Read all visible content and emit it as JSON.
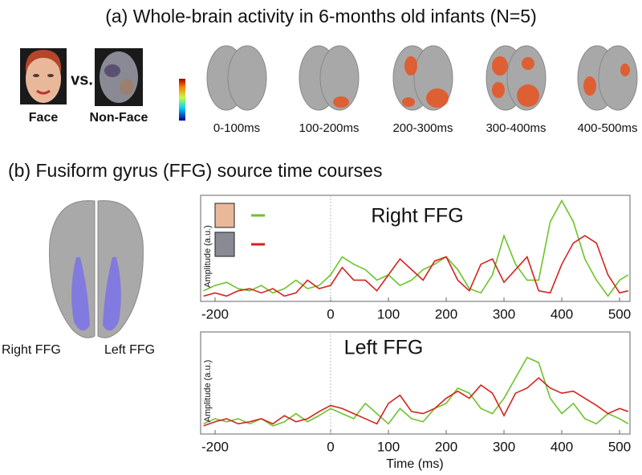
{
  "panel_a": {
    "title": "(a) Whole-brain activity in 6-months old infants (N=5)",
    "face_label": "Face",
    "vs_label": "vs.",
    "nonface_label": "Non-Face",
    "time_windows": [
      "0-100ms",
      "100-200ms",
      "200-300ms",
      "300-400ms",
      "400-500ms"
    ]
  },
  "panel_b": {
    "title": "(b) Fusiform gyrus (FFG) source time courses",
    "right_label": "Right FFG",
    "left_label": "Left FFG"
  },
  "chart_data": [
    {
      "type": "line",
      "title": "Right FFG",
      "y_label": "Amplitude (a.u.)",
      "x": [
        -220,
        -200,
        -180,
        -160,
        -140,
        -120,
        -100,
        -80,
        -60,
        -40,
        -20,
        0,
        20,
        40,
        60,
        80,
        100,
        120,
        140,
        160,
        180,
        200,
        220,
        240,
        260,
        280,
        300,
        320,
        340,
        360,
        380,
        400,
        420,
        440,
        460,
        480,
        500,
        515
      ],
      "series": [
        {
          "color": "#6cc32a",
          "values": [
            10,
            15,
            18,
            12,
            10,
            15,
            8,
            12,
            20,
            12,
            15,
            25,
            42,
            35,
            30,
            20,
            25,
            15,
            20,
            30,
            35,
            42,
            30,
            12,
            8,
            25,
            62,
            35,
            20,
            20,
            75,
            95,
            75,
            40,
            20,
            5,
            20,
            25
          ]
        },
        {
          "color": "#d4231f",
          "values": [
            5,
            8,
            5,
            10,
            12,
            8,
            12,
            5,
            8,
            20,
            12,
            15,
            32,
            20,
            20,
            10,
            25,
            40,
            30,
            20,
            38,
            42,
            20,
            10,
            35,
            40,
            18,
            30,
            42,
            10,
            8,
            35,
            55,
            62,
            55,
            25,
            8,
            10
          ]
        }
      ],
      "xlim": [
        -225,
        518
      ],
      "ylim": [
        0,
        100
      ],
      "xticks": [
        -200,
        0,
        100,
        200,
        300,
        400,
        500
      ]
    },
    {
      "type": "line",
      "title": "Left FFG",
      "y_label": "Amplitude (a.u.)",
      "x_label": "Time (ms)",
      "x": [
        -220,
        -200,
        -180,
        -160,
        -140,
        -120,
        -100,
        -80,
        -60,
        -40,
        -20,
        0,
        20,
        40,
        60,
        80,
        100,
        120,
        140,
        160,
        180,
        200,
        220,
        240,
        260,
        280,
        300,
        320,
        340,
        360,
        380,
        400,
        420,
        440,
        460,
        480,
        500,
        515
      ],
      "series": [
        {
          "color": "#6cc32a",
          "values": [
            10,
            15,
            12,
            15,
            10,
            15,
            8,
            12,
            20,
            12,
            18,
            25,
            20,
            15,
            30,
            20,
            10,
            25,
            15,
            12,
            25,
            30,
            45,
            40,
            25,
            20,
            35,
            55,
            75,
            70,
            35,
            20,
            30,
            15,
            10,
            20,
            15,
            10
          ]
        },
        {
          "color": "#d4231f",
          "values": [
            8,
            12,
            15,
            10,
            12,
            15,
            10,
            18,
            12,
            15,
            22,
            28,
            25,
            20,
            15,
            10,
            30,
            38,
            22,
            20,
            25,
            35,
            42,
            35,
            48,
            40,
            18,
            40,
            45,
            55,
            45,
            40,
            42,
            35,
            28,
            20,
            25,
            22
          ]
        }
      ],
      "xlim": [
        -225,
        518
      ],
      "ylim": [
        0,
        100
      ],
      "xticks": [
        -200,
        0,
        100,
        200,
        300,
        400,
        500
      ]
    }
  ]
}
